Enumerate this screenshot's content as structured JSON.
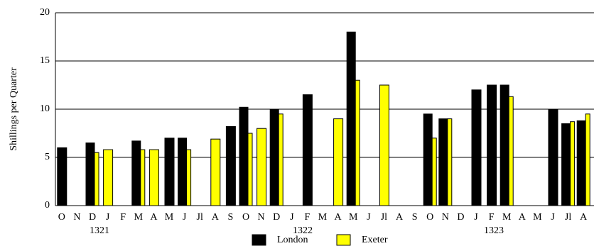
{
  "chart_data": {
    "type": "bar",
    "y_label": "Shillings per Quarter",
    "categories": [
      "O",
      "N",
      "D",
      "J",
      "F",
      "M",
      "A",
      "M",
      "J",
      "Jl",
      "A",
      "S",
      "O",
      "N",
      "D",
      "J",
      "F",
      "M",
      "A",
      "M",
      "J",
      "Jl",
      "A",
      "S",
      "O",
      "N",
      "D",
      "J",
      "F",
      "M",
      "A",
      "M",
      "J",
      "Jl",
      "A"
    ],
    "annotations": [
      "1321",
      "1322",
      "1323"
    ],
    "series": [
      {
        "name": "London",
        "color": "#000000",
        "values": [
          6,
          null,
          6.5,
          null,
          null,
          6.7,
          null,
          7,
          7,
          null,
          null,
          8.2,
          10.2,
          null,
          10,
          null,
          11.5,
          null,
          null,
          18,
          null,
          null,
          null,
          null,
          9.5,
          9,
          null,
          12,
          12.5,
          12.5,
          null,
          null,
          10,
          8.5,
          8.8
        ]
      },
      {
        "name": "Exeter",
        "color": "#ffff00",
        "values": [
          null,
          null,
          5.5,
          5.8,
          null,
          5.8,
          5.8,
          null,
          5.8,
          null,
          6.9,
          null,
          7.5,
          8,
          9.5,
          null,
          null,
          null,
          9,
          13,
          null,
          12.5,
          null,
          null,
          7,
          9,
          null,
          null,
          null,
          11.3,
          null,
          null,
          null,
          8.7,
          9.5
        ]
      }
    ],
    "ylim": [
      0,
      20
    ],
    "yticks": [
      0,
      5,
      10,
      15,
      20
    ],
    "grid": true,
    "legend": "bottom"
  }
}
